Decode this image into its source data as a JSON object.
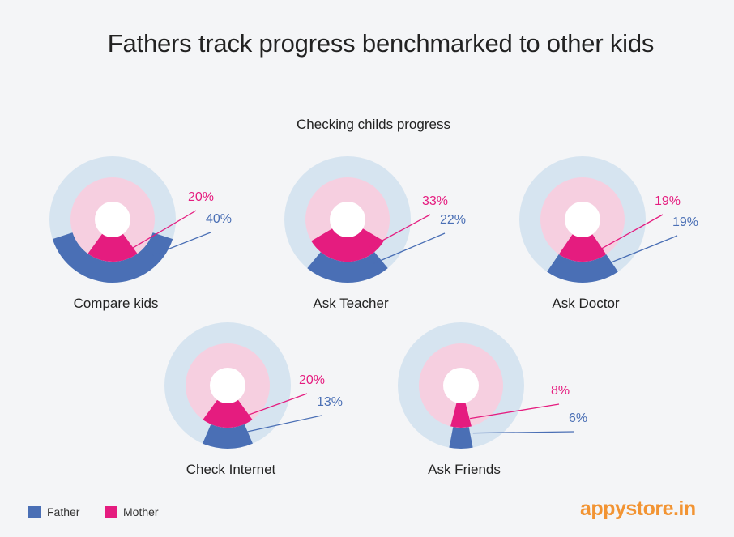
{
  "chart_data": {
    "type": "pie",
    "title": "Fathers track progress benchmarked to other kids",
    "subtitle": "Checking childs progress",
    "series": [
      {
        "name": "Father",
        "color": "#4a6fb5"
      },
      {
        "name": "Mother",
        "color": "#e51c7f"
      }
    ],
    "charts": [
      {
        "label": "Compare kids",
        "father": 40,
        "mother": 20,
        "father_label": "40%",
        "mother_label": "20%"
      },
      {
        "label": "Ask Teacher",
        "father": 22,
        "mother": 33,
        "father_label": "22%",
        "mother_label": "33%"
      },
      {
        "label": "Ask Doctor",
        "father": 19,
        "mother": 19,
        "father_label": "19%",
        "mother_label": "19%"
      },
      {
        "label": "Check Internet",
        "father": 13,
        "mother": 20,
        "father_label": "13%",
        "mother_label": "20%"
      },
      {
        "label": "Ask Friends",
        "father": 6,
        "mother": 8,
        "father_label": "6%",
        "mother_label": "8%"
      }
    ],
    "legend_position": "bottom-left",
    "colors": {
      "father_bg": "#d6e4f0",
      "mother_bg": "#f6cfe0"
    }
  },
  "legend": {
    "father": "Father",
    "mother": "Mother"
  },
  "brand": {
    "name": "appystore.in",
    "color": "#f29433"
  }
}
